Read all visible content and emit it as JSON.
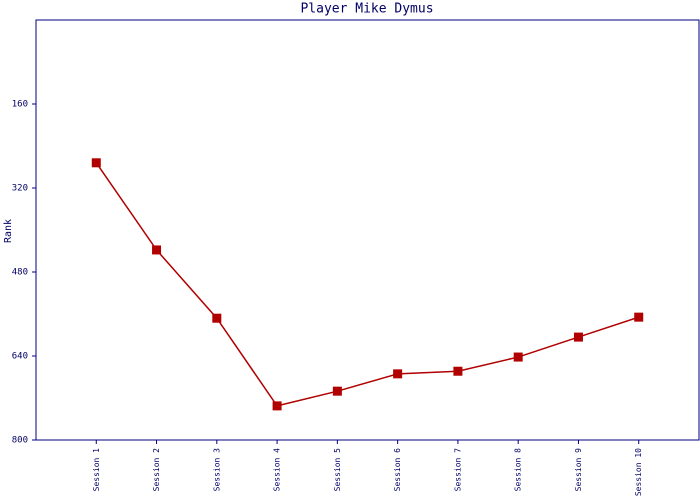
{
  "chart_data": {
    "type": "line",
    "title": "Player Mike Dymus",
    "y_label": "Rank",
    "categories": [
      "Session 1",
      "Session 2",
      "Session 3",
      "Session 4",
      "Session 5",
      "Session 6",
      "Session 7",
      "Session 8",
      "Session 9",
      "Session 10"
    ],
    "series": [
      {
        "name": "Rank",
        "color": "#b00000",
        "values": [
          272,
          438,
          568,
          735,
          707,
          674,
          669,
          642,
          604,
          566
        ]
      }
    ],
    "ylim": [
      0,
      800
    ],
    "y_inverted": true,
    "yticks": [
      160,
      320,
      480,
      640,
      800
    ],
    "grid": false,
    "legend": false
  }
}
